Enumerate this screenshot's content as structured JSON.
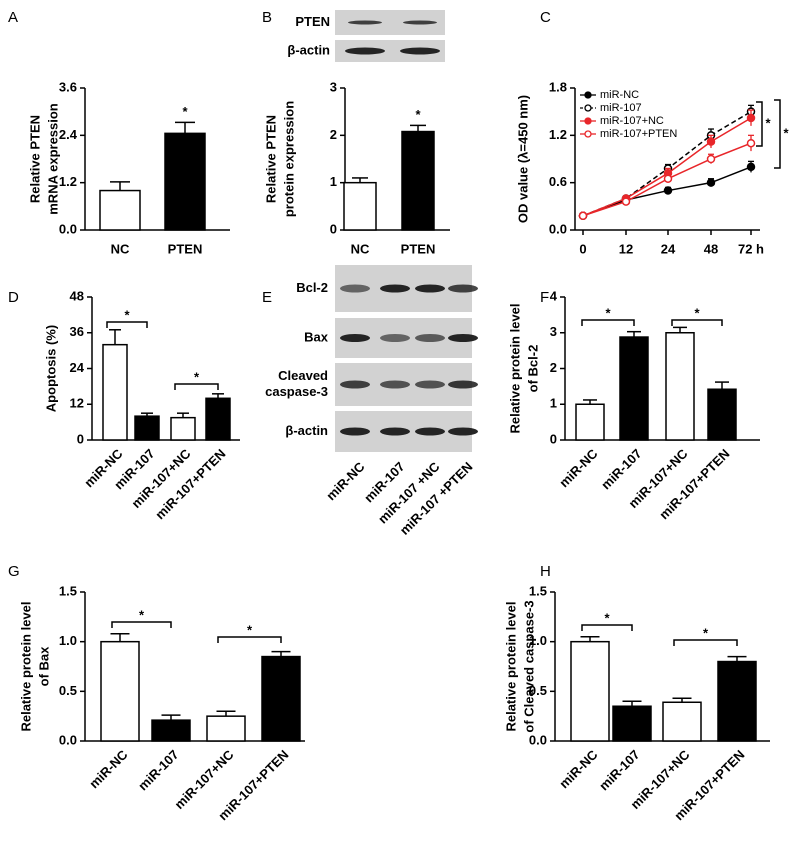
{
  "chart_data": [
    {
      "type": "bar",
      "panel": "A",
      "ylabel": [
        "Relative PTEN",
        "mRNA expression"
      ],
      "categories": [
        "NC",
        "PTEN"
      ],
      "values": [
        1.0,
        2.45
      ],
      "errors": [
        0.22,
        0.28
      ],
      "colors": [
        "#ffffff",
        "#000000"
      ],
      "ylim": [
        0,
        3.6
      ],
      "yticks": [
        {
          "value": 0,
          "label": "0.0"
        },
        1.2,
        2.4,
        3.6
      ],
      "annotations": [
        "*"
      ]
    },
    {
      "type": "bar",
      "panel": "B",
      "ylabel": [
        "Relative PTEN",
        "protein expression"
      ],
      "categories": [
        "NC",
        "PTEN"
      ],
      "values": [
        1.0,
        2.08
      ],
      "errors": [
        0.1,
        0.13
      ],
      "colors": [
        "#ffffff",
        "#000000"
      ],
      "ylim": [
        0,
        3
      ],
      "yticks": [
        0,
        1,
        2,
        3
      ],
      "annotations": [
        "*"
      ]
    },
    {
      "type": "line",
      "panel": "C",
      "ylabel": [
        "OD value (λ=450 nm)"
      ],
      "categories": [
        "0",
        "12",
        "24",
        "48",
        "72 h"
      ],
      "ylim": [
        0,
        1.8
      ],
      "yticks": [
        {
          "value": 0,
          "label": "0.0"
        },
        0.6,
        1.2,
        1.8
      ],
      "series": [
        {
          "name": "miR-NC",
          "color": "#000000",
          "marker": "filled",
          "dashed": false,
          "values": [
            0.18,
            0.38,
            0.5,
            0.6,
            0.8
          ],
          "errors": [
            0.02,
            0.03,
            0.04,
            0.05,
            0.07
          ]
        },
        {
          "name": "miR-107",
          "color": "#000000",
          "marker": "open",
          "dashed": true,
          "values": [
            0.18,
            0.4,
            0.78,
            1.2,
            1.5
          ],
          "errors": [
            0.02,
            0.03,
            0.05,
            0.08,
            0.08
          ]
        },
        {
          "name": "miR-107+NC",
          "color": "#e8262a",
          "marker": "filled",
          "dashed": false,
          "values": [
            0.18,
            0.4,
            0.72,
            1.12,
            1.42
          ],
          "errors": [
            0.02,
            0.03,
            0.06,
            0.08,
            0.1
          ]
        },
        {
          "name": "miR-107+PTEN",
          "color": "#e8262a",
          "marker": "open",
          "dashed": false,
          "values": [
            0.18,
            0.36,
            0.65,
            0.9,
            1.1
          ],
          "errors": [
            0.02,
            0.03,
            0.05,
            0.06,
            0.1
          ]
        }
      ],
      "annotations": [
        "*",
        "*"
      ]
    },
    {
      "type": "bar",
      "panel": "D",
      "ylabel": [
        "Apoptosis (%)"
      ],
      "categories": [
        "miR-NC",
        "miR-107",
        "miR-107+NC",
        "miR-107+PTEN"
      ],
      "values": [
        32,
        8,
        7.5,
        14
      ],
      "errors": [
        5,
        1,
        1.5,
        1.5
      ],
      "colors": [
        "#ffffff",
        "#000000",
        "#ffffff",
        "#000000"
      ],
      "ylim": [
        0,
        48
      ],
      "yticks": [
        0,
        12,
        24,
        36,
        48
      ],
      "annotations": [
        "*",
        "*"
      ]
    },
    {
      "type": "bar",
      "panel": "F",
      "ylabel": [
        "Relative protein level",
        "of Bcl-2"
      ],
      "categories": [
        "miR-NC",
        "miR-107",
        "miR-107+NC",
        "miR-107+PTEN"
      ],
      "values": [
        1.0,
        2.88,
        3.0,
        1.42
      ],
      "errors": [
        0.12,
        0.15,
        0.15,
        0.2
      ],
      "colors": [
        "#ffffff",
        "#000000",
        "#ffffff",
        "#000000"
      ],
      "ylim": [
        0,
        4
      ],
      "yticks": [
        0,
        1,
        2,
        3,
        4
      ],
      "annotations": [
        "*",
        "*"
      ]
    },
    {
      "type": "bar",
      "panel": "G",
      "ylabel": [
        "Relative protein level",
        "of Bax"
      ],
      "categories": [
        "miR-NC",
        "miR-107",
        "miR-107+NC",
        "miR-107+PTEN"
      ],
      "values": [
        1.0,
        0.21,
        0.25,
        0.85
      ],
      "errors": [
        0.08,
        0.05,
        0.05,
        0.05
      ],
      "colors": [
        "#ffffff",
        "#000000",
        "#ffffff",
        "#000000"
      ],
      "ylim": [
        0,
        1.5
      ],
      "yticks": [
        {
          "value": 0,
          "label": "0.0"
        },
        0.5,
        {
          "value": 1,
          "label": "1.0"
        },
        1.5
      ],
      "annotations": [
        "*",
        "*"
      ]
    },
    {
      "type": "bar",
      "panel": "H",
      "ylabel": [
        "Relative protein level",
        "of Cleaved caspase-3"
      ],
      "categories": [
        "miR-NC",
        "miR-107",
        "miR-107+NC",
        "miR-107+PTEN"
      ],
      "values": [
        1.0,
        0.35,
        0.39,
        0.8
      ],
      "errors": [
        0.05,
        0.05,
        0.04,
        0.05
      ],
      "colors": [
        "#ffffff",
        "#000000",
        "#ffffff",
        "#000000"
      ],
      "ylim": [
        0,
        1.5
      ],
      "yticks": [
        {
          "value": 0,
          "label": "0.0"
        },
        0.5,
        {
          "value": 1,
          "label": "1.0"
        },
        1.5
      ],
      "annotations": [
        "*",
        "*"
      ]
    }
  ],
  "blots": {
    "B": {
      "rows": [
        "PTEN",
        "β-actin"
      ]
    },
    "E": {
      "panel": "E",
      "rows": [
        [
          "Bcl-2"
        ],
        [
          "Bax"
        ],
        [
          "Cleaved",
          "caspase-3"
        ],
        [
          "β-actin"
        ]
      ],
      "lanes": [
        "miR-NC",
        "miR-107",
        "miR-107 +NC",
        "miR-107 +PTEN"
      ]
    }
  }
}
